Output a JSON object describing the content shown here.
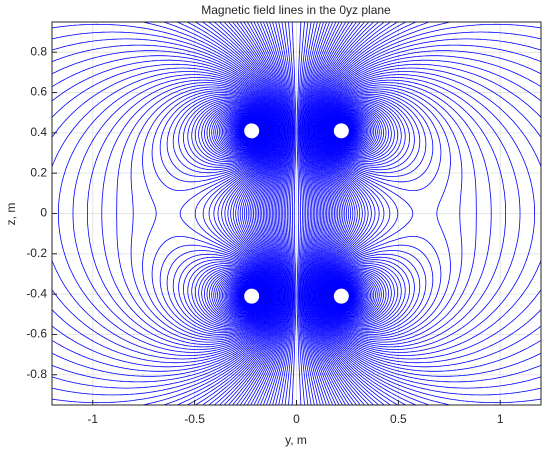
{
  "chart_data": {
    "type": "streamline",
    "title": "Magnetic field lines in the 0yz plane",
    "x_label": "y, m",
    "y_label": "z, m",
    "xlim": [
      -1.2,
      1.2
    ],
    "ylim": [
      -0.95,
      0.95
    ],
    "xticks": [
      -1,
      -0.5,
      0,
      0.5,
      1
    ],
    "yticks": [
      -0.8,
      -0.6,
      -0.4,
      -0.2,
      0,
      0.2,
      0.4,
      0.6,
      0.8
    ],
    "grid": true,
    "color": "#0000ff",
    "sources": {
      "x": [
        -0.22,
        0.22,
        -0.22,
        0.22
      ],
      "y": [
        0.41,
        0.41,
        -0.41,
        -0.41
      ]
    }
  }
}
